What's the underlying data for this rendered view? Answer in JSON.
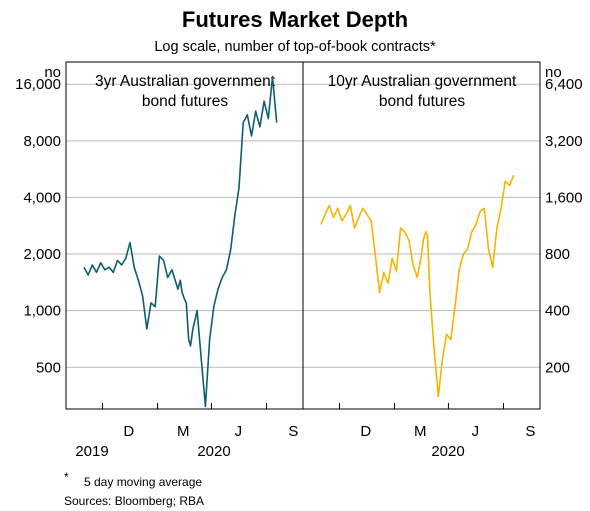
{
  "title": "Futures Market Depth",
  "subtitle": "Log scale, number of top-of-book contracts*",
  "footnote": {
    "marker": "*",
    "text": "5 day moving average"
  },
  "sources": "Sources: Bloomberg; RBA",
  "chart_data": [
    {
      "type": "line",
      "title_lines": [
        "3yr Australian government",
        "bond futures"
      ],
      "ylabel": "no",
      "y_scale": "log",
      "ylim": [
        300,
        21000
      ],
      "y_ticks": [
        500,
        1000,
        2000,
        4000,
        8000,
        16000
      ],
      "y_tick_labels": [
        "500",
        "1,000",
        "2,000",
        "4,000",
        "8,000",
        "16,000"
      ],
      "x_tick_labels": [
        "D",
        "M",
        "J",
        "S"
      ],
      "year_labels": [
        "2019",
        "2020"
      ],
      "color": "#0e5e6f",
      "series": [
        {
          "x": [
            "2019-10-01",
            "2019-10-08",
            "2019-10-15",
            "2019-10-22",
            "2019-10-29",
            "2019-11-05",
            "2019-11-12",
            "2019-11-19",
            "2019-11-26",
            "2019-12-03",
            "2019-12-10",
            "2019-12-17",
            "2019-12-24",
            "2019-12-31",
            "2020-01-07",
            "2020-01-14",
            "2020-01-21",
            "2020-01-28",
            "2020-02-04",
            "2020-02-11",
            "2020-02-18",
            "2020-02-25",
            "2020-03-03",
            "2020-03-06",
            "2020-03-10",
            "2020-03-13",
            "2020-03-17",
            "2020-03-20",
            "2020-03-24",
            "2020-03-27",
            "2020-03-31",
            "2020-04-07",
            "2020-04-14",
            "2020-04-21",
            "2020-04-28",
            "2020-05-05",
            "2020-05-12",
            "2020-05-19",
            "2020-05-26",
            "2020-06-02",
            "2020-06-09",
            "2020-06-16",
            "2020-06-23",
            "2020-06-30",
            "2020-07-07",
            "2020-07-14",
            "2020-07-21",
            "2020-07-28",
            "2020-08-04",
            "2020-08-11",
            "2020-08-18"
          ],
          "y": [
            1700,
            1550,
            1750,
            1600,
            1800,
            1650,
            1700,
            1600,
            1850,
            1750,
            1900,
            2300,
            1700,
            1450,
            1200,
            800,
            1100,
            1050,
            1950,
            1850,
            1500,
            1650,
            1400,
            1300,
            1450,
            1250,
            1150,
            1100,
            700,
            650,
            800,
            1000,
            550,
            310,
            700,
            1050,
            1300,
            1500,
            1650,
            2100,
            3200,
            4500,
            10000,
            11000,
            8500,
            11500,
            9500,
            13000,
            10500,
            17500,
            10000
          ]
        }
      ]
    },
    {
      "type": "line",
      "title_lines": [
        "10yr Australian government",
        "bond futures"
      ],
      "ylabel": "no",
      "y_scale": "log",
      "ylim": [
        120,
        8400
      ],
      "y_ticks": [
        200,
        400,
        800,
        1600,
        3200,
        6400
      ],
      "y_tick_labels": [
        "200",
        "400",
        "800",
        "1,600",
        "3,200",
        "6,400"
      ],
      "x_tick_labels": [
        "D",
        "M",
        "J",
        "S"
      ],
      "year_labels": [
        "2020"
      ],
      "color": "#f4b400",
      "series": [
        {
          "x": [
            "2019-10-01",
            "2019-10-08",
            "2019-10-15",
            "2019-10-22",
            "2019-10-29",
            "2019-11-05",
            "2019-11-12",
            "2019-11-19",
            "2019-11-26",
            "2019-12-03",
            "2019-12-10",
            "2019-12-17",
            "2019-12-24",
            "2019-12-31",
            "2020-01-07",
            "2020-01-14",
            "2020-01-21",
            "2020-01-28",
            "2020-02-04",
            "2020-02-11",
            "2020-02-18",
            "2020-02-25",
            "2020-03-03",
            "2020-03-10",
            "2020-03-17",
            "2020-03-20",
            "2020-03-24",
            "2020-03-27",
            "2020-03-31",
            "2020-04-07",
            "2020-04-14",
            "2020-04-21",
            "2020-04-28",
            "2020-05-05",
            "2020-05-12",
            "2020-05-19",
            "2020-05-26",
            "2020-06-02",
            "2020-06-09",
            "2020-06-16",
            "2020-06-23",
            "2020-06-30",
            "2020-07-07",
            "2020-07-14",
            "2020-07-21",
            "2020-07-28",
            "2020-08-04",
            "2020-08-11",
            "2020-08-18"
          ],
          "y": [
            1150,
            1300,
            1450,
            1250,
            1400,
            1200,
            1300,
            1450,
            1100,
            1250,
            1400,
            1300,
            1200,
            780,
            500,
            640,
            560,
            760,
            650,
            1100,
            1050,
            950,
            700,
            600,
            800,
            950,
            1050,
            1000,
            500,
            250,
            140,
            220,
            300,
            280,
            420,
            660,
            800,
            850,
            1050,
            1150,
            1350,
            1400,
            850,
            680,
            1100,
            1400,
            1950,
            1850,
            2100
          ]
        }
      ]
    }
  ]
}
